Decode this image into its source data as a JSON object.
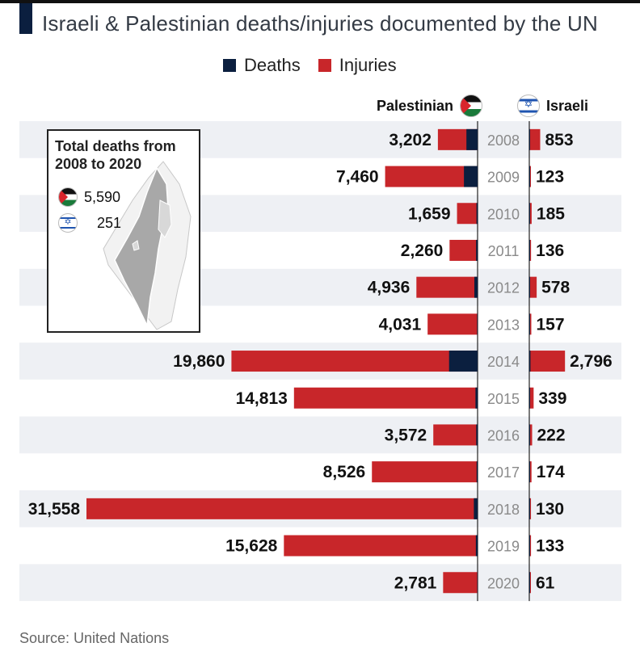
{
  "title": "Israeli & Palestinian deaths/injuries documented by the UN",
  "legend": {
    "deaths": "Deaths",
    "injuries": "Injuries"
  },
  "colors": {
    "deaths": "#0b1f3f",
    "injuries": "#c8262a",
    "stripe": "#eef0f4",
    "title_mark": "#0b1f3f"
  },
  "columns": {
    "left": "Palestinian",
    "right": "Israeli"
  },
  "inset": {
    "title": "Total deaths from 2008 to 2020",
    "palestinian_total": "5,590",
    "israeli_total": "251",
    "palestinian_icon": "palestine-flag-icon",
    "israeli_icon": "israel-flag-icon"
  },
  "source": "Source: United Nations",
  "chart_data": {
    "type": "bar",
    "orientation": "horizontal-diverging",
    "categories": [
      "2008",
      "2009",
      "2010",
      "2011",
      "2012",
      "2013",
      "2014",
      "2015",
      "2016",
      "2017",
      "2018",
      "2019",
      "2020"
    ],
    "palestinian": {
      "totals": [
        3202,
        7460,
        1659,
        2260,
        4936,
        4031,
        19860,
        14813,
        3572,
        8526,
        31558,
        15628,
        2781
      ],
      "labels": [
        "3,202",
        "7,460",
        "1,659",
        "2,260",
        "4,936",
        "4,031",
        "19,860",
        "14,813",
        "3,572",
        "8,526",
        "31,558",
        "15,628",
        "2,781"
      ],
      "deaths": [
        900,
        1100,
        90,
        120,
        260,
        40,
        2300,
        170,
        110,
        80,
        300,
        140,
        30
      ]
    },
    "israeli": {
      "totals": [
        853,
        123,
        185,
        136,
        578,
        157,
        2796,
        339,
        222,
        174,
        130,
        133,
        61
      ],
      "labels": [
        "853",
        "123",
        "185",
        "136",
        "578",
        "157",
        "2,796",
        "339",
        "222",
        "174",
        "130",
        "133",
        "61"
      ],
      "deaths": [
        40,
        8,
        10,
        10,
        20,
        6,
        90,
        30,
        15,
        20,
        15,
        15,
        5
      ]
    },
    "series": [
      {
        "name": "Deaths"
      },
      {
        "name": "Injuries"
      }
    ]
  }
}
